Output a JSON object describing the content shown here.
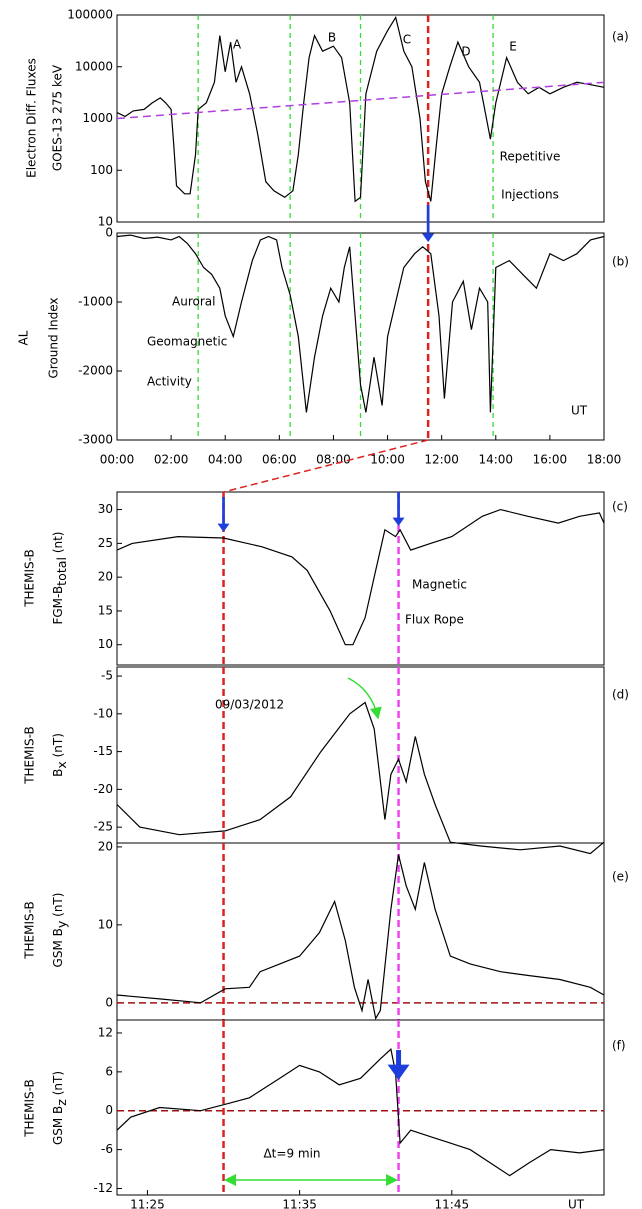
{
  "chart_data": [
    {
      "type": "line",
      "panel": "(a)",
      "ylabel": [
        "Electron Diff. Fluxes",
        "GOES-13  275 keV"
      ],
      "yscale": "log",
      "color": "#000000",
      "x": [
        0,
        0.3,
        0.6,
        1,
        1.3,
        1.6,
        1.8,
        2.0,
        2.1,
        2.2,
        2.5,
        2.7,
        2.9,
        3.0,
        3.3,
        3.6,
        3.8,
        4.0,
        4.2,
        4.4,
        4.6,
        4.9,
        5.2,
        5.5,
        5.8,
        6.2,
        6.5,
        6.7,
        6.9,
        7.1,
        7.3,
        7.6,
        8.0,
        8.3,
        8.6,
        8.8,
        9.0,
        9.2,
        9.6,
        10.0,
        10.3,
        10.6,
        10.9,
        11.2,
        11.4,
        11.6,
        11.8,
        12.0,
        12.3,
        12.6,
        13.0,
        13.4,
        13.8,
        14.0,
        14.4,
        14.8,
        15.2,
        15.6,
        16,
        16.5,
        17,
        17.5,
        18
      ],
      "values": [
        1300,
        1100,
        1400,
        1500,
        2000,
        2500,
        2000,
        1500,
        300,
        50,
        35,
        35,
        200,
        1500,
        2000,
        5000,
        40000,
        8000,
        30000,
        5000,
        10000,
        3000,
        500,
        60,
        40,
        30,
        40,
        200,
        2000,
        15000,
        40000,
        20000,
        25000,
        15000,
        2000,
        25,
        30,
        3000,
        20000,
        50000,
        90000,
        20000,
        10000,
        1000,
        60,
        25,
        300,
        3000,
        10000,
        30000,
        10000,
        5000,
        400,
        2000,
        15000,
        5000,
        3000,
        4000,
        3000,
        4000,
        5000,
        4500,
        4000
      ],
      "xlim": [
        0,
        18
      ],
      "ylim": [
        10,
        100000
      ],
      "yticks": [
        10,
        100,
        1000,
        10000,
        100000
      ],
      "trend": {
        "x": [
          0,
          18
        ],
        "values": [
          1000,
          5000
        ],
        "color": "#b040e0"
      },
      "vlines": [
        {
          "x": 3,
          "color": "#33dd33"
        },
        {
          "x": 6.4,
          "color": "#33dd33"
        },
        {
          "x": 9,
          "color": "#33dd33"
        },
        {
          "x": 11.5,
          "color": "#dd2222"
        },
        {
          "x": 13.9,
          "color": "#33dd33"
        }
      ],
      "annotations": [
        {
          "text": "A",
          "color": "#1f3fdd"
        },
        {
          "text": "B",
          "color": "#1f3fdd"
        },
        {
          "text": "C",
          "color": "#1f3fdd"
        },
        {
          "text": "D",
          "color": "#1f3fdd"
        },
        {
          "text": "E",
          "color": "#1f3fdd"
        },
        {
          "text": "Repetitive",
          "color": "#000000"
        },
        {
          "text": "Injections",
          "color": "#000000"
        }
      ]
    },
    {
      "type": "line",
      "panel": "(b)",
      "ylabel": [
        "AL",
        "Ground Index"
      ],
      "color": "#000000",
      "x": [
        0,
        0.5,
        1,
        1.5,
        2,
        2.3,
        2.6,
        2.9,
        3.2,
        3.5,
        3.8,
        4.0,
        4.3,
        4.6,
        5.0,
        5.3,
        5.6,
        5.9,
        6.1,
        6.4,
        6.7,
        7.0,
        7.3,
        7.6,
        7.9,
        8.2,
        8.4,
        8.6,
        8.8,
        9.0,
        9.2,
        9.5,
        9.8,
        10.0,
        10.3,
        10.6,
        11.0,
        11.3,
        11.6,
        11.9,
        12.1,
        12.4,
        12.8,
        13.1,
        13.4,
        13.7,
        13.8,
        14.0,
        14.5,
        15.0,
        15.5,
        16.0,
        16.5,
        17.0,
        17.5,
        18
      ],
      "values": [
        -50,
        -30,
        -80,
        -60,
        -100,
        -50,
        -150,
        -300,
        -500,
        -600,
        -800,
        -1200,
        -1500,
        -1000,
        -400,
        -100,
        -50,
        -100,
        -500,
        -900,
        -1500,
        -2600,
        -1800,
        -1200,
        -800,
        -1000,
        -500,
        -200,
        -1200,
        -2200,
        -2600,
        -1800,
        -2500,
        -1500,
        -1000,
        -500,
        -300,
        -200,
        -300,
        -1200,
        -2400,
        -1000,
        -700,
        -1400,
        -800,
        -1000,
        -2600,
        -500,
        -400,
        -600,
        -800,
        -300,
        -400,
        -300,
        -100,
        -50
      ],
      "xlim": [
        0,
        18
      ],
      "ylim": [
        -3000,
        0
      ],
      "yticks": [
        0,
        -1000,
        -2000,
        -3000
      ],
      "xticks": [
        {
          "value": 0,
          "label": "00:00"
        },
        {
          "value": 2,
          "label": "02:00"
        },
        {
          "value": 4,
          "label": "04:00"
        },
        {
          "value": 6,
          "label": "06:00"
        },
        {
          "value": 8,
          "label": "08:00"
        },
        {
          "value": 10,
          "label": "10:00"
        },
        {
          "value": 12,
          "label": "12:00"
        },
        {
          "value": 14,
          "label": "14:00"
        },
        {
          "value": 16,
          "label": "16:00"
        },
        {
          "value": 18,
          "label": "18:00"
        }
      ],
      "vlines": [
        {
          "x": 3,
          "color": "#33dd33"
        },
        {
          "x": 6.4,
          "color": "#33dd33"
        },
        {
          "x": 9,
          "color": "#33dd33"
        },
        {
          "x": 11.5,
          "color": "#dd2222"
        },
        {
          "x": 13.9,
          "color": "#33dd33"
        }
      ],
      "annotations": [
        {
          "text": "Auroral",
          "color": "#000000"
        },
        {
          "text": "Geomagnetic",
          "color": "#000000"
        },
        {
          "text": "Activity",
          "color": "#000000"
        },
        {
          "text": "UT",
          "color": "#000000"
        }
      ]
    },
    {
      "type": "line",
      "panel": "(c)",
      "ylabel": [
        "THEMIS-B",
        [
          "FGM-B",
          "total",
          " (nt)"
        ]
      ],
      "color": "#000000",
      "x": [
        23,
        24,
        27,
        30,
        32.5,
        34.5,
        35.5,
        37,
        38,
        38.5,
        39.3,
        40,
        40.6,
        41.3,
        41.6,
        42.3,
        43.6,
        45,
        47,
        48.2,
        50,
        52,
        53.4,
        54.7,
        55
      ],
      "values": [
        24,
        25,
        26,
        25.8,
        24.5,
        23,
        21,
        15,
        10,
        10,
        14,
        21,
        27,
        26,
        27,
        24,
        25,
        26,
        29,
        30,
        29,
        28,
        29,
        29.5,
        28
      ],
      "xlim": [
        23,
        55
      ],
      "ylim": [
        7,
        32.6
      ],
      "yticks": [
        10,
        15,
        20,
        25,
        30
      ],
      "vlines": [
        {
          "x": 30,
          "color": "#dd2222"
        },
        {
          "x": 41.5,
          "color": "#ee44ee"
        }
      ],
      "annotations": [
        {
          "text": "Magnetic",
          "color": "#000000"
        },
        {
          "text": "Flux  Rope",
          "color": "#000000"
        }
      ]
    },
    {
      "type": "line",
      "panel": "(d)",
      "ylabel": [
        "THEMIS-B",
        [
          "B",
          "x",
          " (nT)"
        ]
      ],
      "color": "#000000",
      "x": [
        23,
        24.5,
        27.1,
        30.1,
        32.4,
        34.4,
        36.4,
        38.3,
        39.3,
        39.9,
        40.6,
        41,
        41.5,
        42,
        42.6,
        43.2,
        43.9,
        44.9,
        46.9,
        49.5,
        52.1,
        54.1,
        55
      ],
      "values": [
        -22,
        -25,
        -26,
        -25.5,
        -24,
        -21,
        -15,
        -10,
        -8.5,
        -12,
        -24,
        -18,
        -16,
        -19,
        -13,
        -18,
        -22,
        -27,
        -27.5,
        -28,
        -27.5,
        -28.5,
        -27
      ],
      "xlim": [
        23,
        55
      ],
      "ylim": [
        -27.1,
        -3.8
      ],
      "yticks": [
        -5,
        -10,
        -15,
        -20,
        -25
      ],
      "vlines": [
        {
          "x": 30,
          "color": "#dd2222"
        },
        {
          "x": 41.5,
          "color": "#ee44ee"
        }
      ],
      "annotations": [
        {
          "text": "09/03/2012",
          "color": "#000000"
        }
      ]
    },
    {
      "type": "line",
      "panel": "(e)",
      "ylabel": [
        "THEMIS-B",
        [
          "GSM B",
          "y",
          " (nT)"
        ]
      ],
      "color": "#000000",
      "x": [
        23,
        25.8,
        28.5,
        30.1,
        31.7,
        32.4,
        33.7,
        35,
        36.3,
        37.3,
        38,
        38.6,
        39.1,
        39.5,
        40,
        40.3,
        41,
        41.5,
        42,
        42.6,
        43.2,
        43.9,
        44.9,
        46.2,
        48.2,
        50.1,
        52.1,
        54.1,
        55
      ],
      "values": [
        1,
        0.5,
        0,
        1.8,
        2,
        4,
        5,
        6,
        9,
        13,
        8,
        2,
        -1,
        3,
        -2,
        -1,
        12,
        19,
        15,
        12,
        18,
        12,
        6,
        5,
        4,
        3.5,
        3,
        2,
        1
      ],
      "xlim": [
        23,
        55
      ],
      "ylim": [
        -2.2,
        20.5
      ],
      "yticks": [
        0,
        10,
        20
      ],
      "hlines": [
        0
      ],
      "vlines": [
        {
          "x": 30,
          "color": "#dd2222"
        },
        {
          "x": 41.5,
          "color": "#ee44ee"
        }
      ],
      "annotations": []
    },
    {
      "type": "line",
      "panel": "(f)",
      "ylabel": [
        "THEMIS-B",
        [
          "GSM B",
          "z",
          " (nT)"
        ]
      ],
      "color": "#000000",
      "x": [
        23,
        23.9,
        25.8,
        28.5,
        30.1,
        31.7,
        33.7,
        35,
        36.3,
        37.6,
        39,
        40.3,
        41,
        41.3,
        41.6,
        42.3,
        43.6,
        44.9,
        46.2,
        47.5,
        48.8,
        50.1,
        51.5,
        53.4,
        55
      ],
      "values": [
        -3,
        -1,
        0.5,
        0,
        1,
        2,
        5,
        7,
        6,
        4,
        5,
        8,
        9.5,
        6,
        -5,
        -3,
        -4,
        -5,
        -6,
        -8,
        -10,
        -8,
        -6,
        -6.5,
        -6
      ],
      "xlim": [
        23,
        55
      ],
      "ylim": [
        -13,
        14
      ],
      "yticks": [
        12,
        6,
        0,
        -6,
        -12
      ],
      "hlines": [
        0
      ],
      "xticks": [
        {
          "value": 25,
          "label": "11:25"
        },
        {
          "value": 35,
          "label": "11:35"
        },
        {
          "value": 45,
          "label": "11:45"
        }
      ],
      "xlabel": "UT",
      "vlines": [
        {
          "x": 30,
          "color": "#dd2222"
        },
        {
          "x": 41.5,
          "color": "#ee44ee"
        }
      ],
      "annotations": [
        {
          "text": "Δt=9 min",
          "color": "#33dd33"
        }
      ]
    }
  ]
}
